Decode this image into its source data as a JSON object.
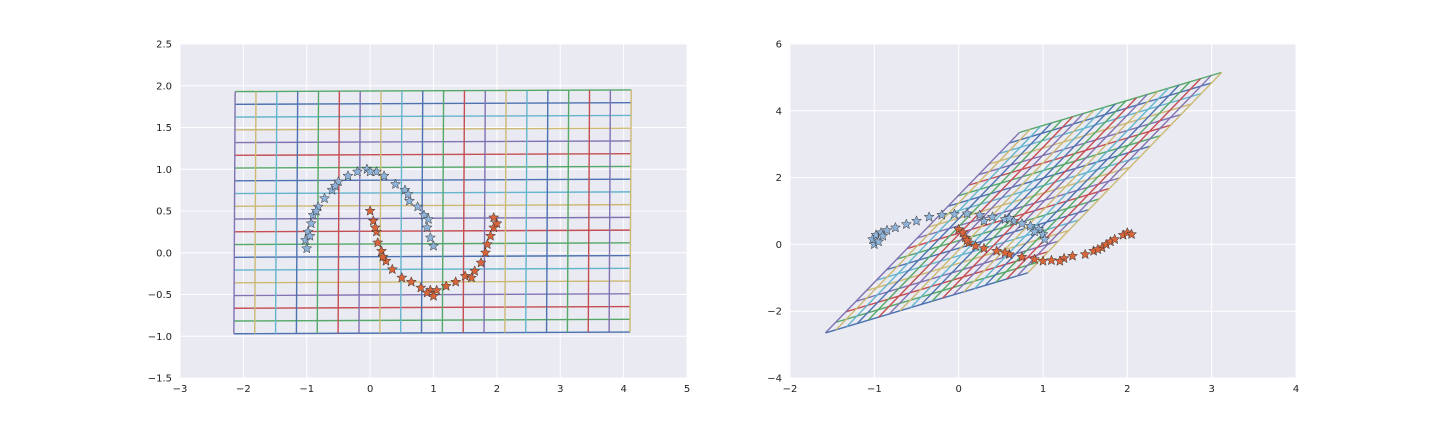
{
  "palette": [
    "#4c72b0",
    "#55a868",
    "#c44e52",
    "#8172b2",
    "#ccb974",
    "#64b5cd"
  ],
  "class_colors": [
    "#8fb3d9",
    "#d9653b"
  ],
  "chart_data": [
    {
      "type": "scatter",
      "title": "",
      "xlabel": "",
      "ylabel": "",
      "xlim": [
        -3,
        5
      ],
      "ylim": [
        -1.5,
        2.5
      ],
      "xticks": [
        -3,
        -2,
        -1,
        0,
        1,
        2,
        3,
        4,
        5
      ],
      "yticks": [
        -1.5,
        -1.0,
        -0.5,
        0.0,
        0.5,
        1.0,
        1.5,
        2.0,
        2.5
      ],
      "xtick_labels": [
        "−3",
        "−2",
        "−1",
        "0",
        "1",
        "2",
        "3",
        "4",
        "5"
      ],
      "ytick_labels": [
        "−1.5",
        "−1.0",
        "−0.5",
        "0.0",
        "0.5",
        "1.0",
        "1.5",
        "2.0",
        "2.5"
      ],
      "grid": true,
      "mesh": {
        "origin": [
          -2.15,
          -0.97
        ],
        "u": [
          6.25,
          0.02
        ],
        "v": [
          0.02,
          2.9
        ],
        "divisions_u": 19,
        "divisions_v": 19
      },
      "series": [
        {
          "points": [
            [
              -1.0,
              0.05
            ],
            [
              -1.02,
              0.15
            ],
            [
              -0.98,
              0.25
            ],
            [
              -0.93,
              0.35
            ],
            [
              -0.9,
              0.45
            ],
            [
              -0.82,
              0.55
            ],
            [
              -0.72,
              0.65
            ],
            [
              -0.6,
              0.75
            ],
            [
              -0.5,
              0.85
            ],
            [
              -0.35,
              0.92
            ],
            [
              -0.2,
              0.97
            ],
            [
              -0.05,
              1.0
            ],
            [
              0.1,
              0.97
            ],
            [
              0.22,
              0.92
            ],
            [
              0.4,
              0.82
            ],
            [
              0.55,
              0.75
            ],
            [
              0.62,
              0.62
            ],
            [
              0.75,
              0.55
            ],
            [
              0.85,
              0.45
            ],
            [
              0.9,
              0.3
            ],
            [
              0.95,
              0.18
            ],
            [
              1.0,
              0.08
            ],
            [
              -0.95,
              0.2
            ],
            [
              -0.85,
              0.5
            ],
            [
              -0.55,
              0.8
            ],
            [
              0.0,
              0.97
            ],
            [
              0.6,
              0.7
            ],
            [
              0.92,
              0.4
            ]
          ]
        },
        {
          "points": [
            [
              0.0,
              0.5
            ],
            [
              0.05,
              0.38
            ],
            [
              0.1,
              0.25
            ],
            [
              0.12,
              0.12
            ],
            [
              0.18,
              0.02
            ],
            [
              0.25,
              -0.1
            ],
            [
              0.35,
              -0.2
            ],
            [
              0.5,
              -0.3
            ],
            [
              0.65,
              -0.35
            ],
            [
              0.8,
              -0.42
            ],
            [
              0.95,
              -0.45
            ],
            [
              1.05,
              -0.45
            ],
            [
              1.2,
              -0.4
            ],
            [
              1.35,
              -0.35
            ],
            [
              1.5,
              -0.28
            ],
            [
              1.65,
              -0.22
            ],
            [
              1.75,
              -0.12
            ],
            [
              1.82,
              0.0
            ],
            [
              1.85,
              0.1
            ],
            [
              1.9,
              0.2
            ],
            [
              1.95,
              0.3
            ],
            [
              2.0,
              0.35
            ],
            [
              1.95,
              0.42
            ],
            [
              0.08,
              0.3
            ],
            [
              0.9,
              -0.48
            ],
            [
              1.6,
              -0.3
            ],
            [
              0.2,
              -0.05
            ],
            [
              1.0,
              -0.52
            ]
          ]
        }
      ]
    },
    {
      "type": "scatter",
      "title": "",
      "xlabel": "",
      "ylabel": "",
      "xlim": [
        -2,
        4
      ],
      "ylim": [
        -4,
        6
      ],
      "xticks": [
        -2,
        -1,
        0,
        1,
        2,
        3,
        4
      ],
      "yticks": [
        -4,
        -2,
        0,
        2,
        4,
        6
      ],
      "xtick_labels": [
        "−2",
        "−1",
        "0",
        "1",
        "2",
        "3",
        "4"
      ],
      "ytick_labels": [
        "−4",
        "−2",
        "0",
        "2",
        "4",
        "6"
      ],
      "grid": true,
      "mesh": {
        "origin": [
          -1.58,
          -2.65
        ],
        "u": [
          2.4,
          1.8
        ],
        "v": [
          2.3,
          6.0
        ],
        "divisions_u": 19,
        "divisions_v": 19
      },
      "series": [
        {
          "points": [
            [
              -1.0,
              0.0
            ],
            [
              -1.02,
              0.15
            ],
            [
              -0.98,
              0.28
            ],
            [
              -0.92,
              0.35
            ],
            [
              -0.85,
              0.42
            ],
            [
              -0.75,
              0.5
            ],
            [
              -0.62,
              0.6
            ],
            [
              -0.5,
              0.7
            ],
            [
              -0.35,
              0.82
            ],
            [
              -0.2,
              0.88
            ],
            [
              -0.05,
              0.9
            ],
            [
              0.1,
              0.92
            ],
            [
              0.25,
              0.88
            ],
            [
              0.4,
              0.82
            ],
            [
              0.55,
              0.75
            ],
            [
              0.65,
              0.7
            ],
            [
              0.75,
              0.62
            ],
            [
              0.85,
              0.55
            ],
            [
              0.95,
              0.45
            ],
            [
              1.0,
              0.3
            ],
            [
              1.02,
              0.15
            ],
            [
              -0.95,
              0.08
            ],
            [
              -0.9,
              0.25
            ],
            [
              0.6,
              0.78
            ],
            [
              0.9,
              0.38
            ],
            [
              0.3,
              0.7
            ]
          ]
        },
        {
          "points": [
            [
              0.0,
              0.45
            ],
            [
              0.05,
              0.35
            ],
            [
              0.08,
              0.2
            ],
            [
              0.12,
              0.05
            ],
            [
              0.2,
              -0.05
            ],
            [
              0.3,
              -0.12
            ],
            [
              0.45,
              -0.2
            ],
            [
              0.6,
              -0.3
            ],
            [
              0.75,
              -0.38
            ],
            [
              0.9,
              -0.45
            ],
            [
              1.0,
              -0.5
            ],
            [
              1.1,
              -0.48
            ],
            [
              1.25,
              -0.42
            ],
            [
              1.35,
              -0.35
            ],
            [
              1.5,
              -0.3
            ],
            [
              1.6,
              -0.2
            ],
            [
              1.7,
              -0.1
            ],
            [
              1.75,
              0.0
            ],
            [
              1.8,
              0.08
            ],
            [
              1.85,
              0.15
            ],
            [
              1.95,
              0.28
            ],
            [
              2.0,
              0.35
            ],
            [
              2.05,
              0.3
            ],
            [
              0.1,
              0.12
            ],
            [
              0.55,
              -0.25
            ],
            [
              1.2,
              -0.5
            ],
            [
              1.65,
              -0.15
            ]
          ]
        }
      ]
    }
  ]
}
